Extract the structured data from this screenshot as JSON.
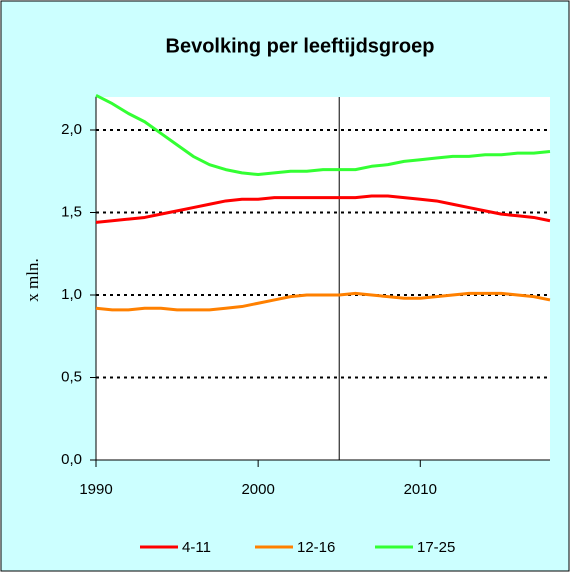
{
  "chart_data": {
    "type": "line",
    "title": "Bevolking per leeftijdsgroep",
    "y_label": "x mln.",
    "x": [
      1990,
      1991,
      1992,
      1993,
      1994,
      1995,
      1996,
      1997,
      1998,
      1999,
      2000,
      2001,
      2002,
      2003,
      2004,
      2005,
      2006,
      2007,
      2008,
      2009,
      2010,
      2011,
      2012,
      2013,
      2014,
      2015,
      2016,
      2017,
      2018
    ],
    "series": [
      {
        "name": "4-11",
        "color": "#ff0000",
        "values": [
          1.44,
          1.45,
          1.46,
          1.47,
          1.49,
          1.51,
          1.53,
          1.55,
          1.57,
          1.58,
          1.58,
          1.59,
          1.59,
          1.59,
          1.59,
          1.59,
          1.59,
          1.6,
          1.6,
          1.59,
          1.58,
          1.57,
          1.55,
          1.53,
          1.51,
          1.49,
          1.48,
          1.47,
          1.45
        ]
      },
      {
        "name": "12-16",
        "color": "#ff8000",
        "values": [
          0.92,
          0.91,
          0.91,
          0.92,
          0.92,
          0.91,
          0.91,
          0.91,
          0.92,
          0.93,
          0.95,
          0.97,
          0.99,
          1.0,
          1.0,
          1.0,
          1.01,
          1.0,
          0.99,
          0.98,
          0.98,
          0.99,
          1.0,
          1.01,
          1.01,
          1.01,
          1.0,
          0.99,
          0.97
        ]
      },
      {
        "name": "17-25",
        "color": "#33ff33",
        "values": [
          2.21,
          2.16,
          2.1,
          2.05,
          1.98,
          1.91,
          1.84,
          1.79,
          1.76,
          1.74,
          1.73,
          1.74,
          1.75,
          1.75,
          1.76,
          1.76,
          1.76,
          1.78,
          1.79,
          1.81,
          1.82,
          1.83,
          1.84,
          1.84,
          1.85,
          1.85,
          1.86,
          1.86,
          1.87
        ]
      }
    ],
    "xlim": [
      1990,
      2018
    ],
    "xticks": [
      1990,
      2000,
      2010
    ],
    "ylim": [
      0,
      2.2
    ],
    "yticks": [
      {
        "value": 0,
        "label": "0,0"
      },
      {
        "value": 0.5,
        "label": "0,5"
      },
      {
        "value": 1,
        "label": "1,0"
      },
      {
        "value": 1.5,
        "label": "1,5"
      },
      {
        "value": 2,
        "label": "2,0"
      }
    ],
    "grid": true,
    "vline": 2005,
    "legend": "bottom"
  }
}
